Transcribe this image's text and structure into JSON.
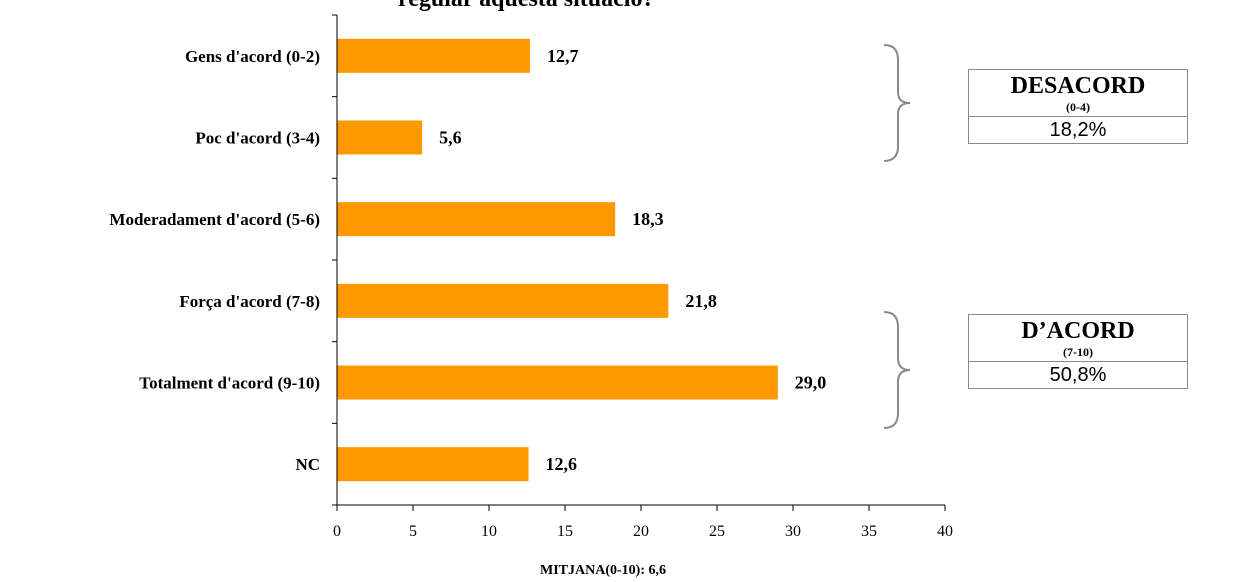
{
  "title_fragment": "regular aquesta situació?",
  "chart_data": {
    "type": "bar",
    "orientation": "horizontal",
    "categories": [
      "Gens d'acord (0-2)",
      "Poc d'acord (3-4)",
      "Moderadament d'acord (5-6)",
      "Força d'acord (7-8)",
      "Totalment d'acord (9-10)",
      "NC"
    ],
    "values": [
      12.7,
      5.6,
      18.3,
      21.8,
      29.0,
      12.6
    ],
    "value_labels": [
      "12,7",
      "5,6",
      "18,3",
      "21,8",
      "29,0",
      "12,6"
    ],
    "xlim": [
      0,
      40
    ],
    "xticks": [
      0,
      5,
      10,
      15,
      20,
      25,
      30,
      35,
      40
    ],
    "bar_color": "#FF9900",
    "grid": false,
    "legend": "none"
  },
  "summary": {
    "disagree": {
      "label": "DESACORD",
      "range": "(0-4)",
      "value": "18,2%"
    },
    "agree": {
      "label": "D’ACORD",
      "range": "(7-10)",
      "value": "50,8%"
    }
  },
  "footer": {
    "mean_label": "MITJANA(0-10): 6,6"
  }
}
